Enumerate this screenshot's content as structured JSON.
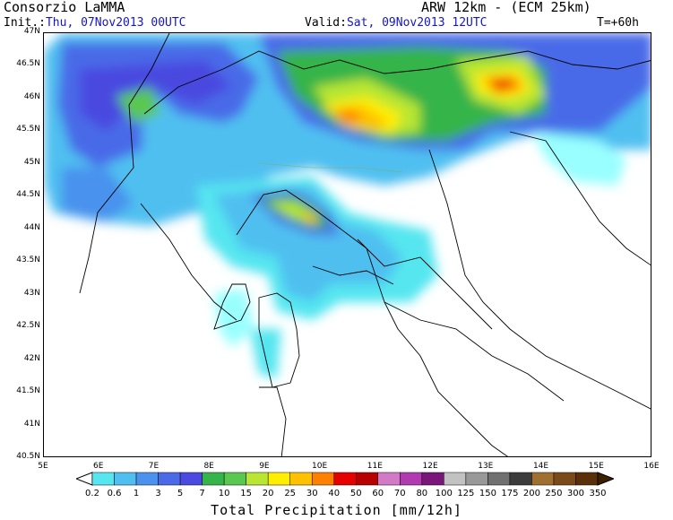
{
  "header": {
    "source": "Consorzio LaMMA",
    "model": "ARW 12km - (ECM 25km)",
    "init_label": "Init.:",
    "init_value": "Thu, 07Nov2013 00UTC",
    "valid_label": "Valid:",
    "valid_value": "Sat, 09Nov2013 12UTC",
    "lead_time": "T=+60h"
  },
  "map": {
    "lat_labels": [
      "47N",
      "46.5N",
      "46N",
      "45.5N",
      "45N",
      "44.5N",
      "44N",
      "43.5N",
      "43N",
      "42.5N",
      "42N",
      "41.5N",
      "41N",
      "40.5N"
    ],
    "lon_labels": [
      "5E",
      "6E",
      "7E",
      "8E",
      "9E",
      "10E",
      "11E",
      "12E",
      "13E",
      "14E",
      "15E",
      "16E"
    ]
  },
  "colorbar": {
    "title": "Total Precipitation [mm/12h]",
    "thresholds": [
      "0.2",
      "0.6",
      "1",
      "3",
      "5",
      "7",
      "10",
      "15",
      "20",
      "25",
      "30",
      "40",
      "50",
      "60",
      "70",
      "80",
      "100",
      "125",
      "150",
      "175",
      "200",
      "250",
      "300",
      "350"
    ],
    "colors": [
      "#99ffff",
      "#55e6f0",
      "#4fbff0",
      "#4a92ee",
      "#4a6ae8",
      "#4a4ae0",
      "#35b44a",
      "#5ac850",
      "#b8e632",
      "#ffee00",
      "#ffc000",
      "#ff8000",
      "#e60000",
      "#b80000",
      "#d27ac6",
      "#b23ab0",
      "#7a167a",
      "#c2c2c2",
      "#999999",
      "#707070",
      "#3c3c3c",
      "#a07030",
      "#7a4a18",
      "#5a3008",
      "#3c2000"
    ]
  }
}
